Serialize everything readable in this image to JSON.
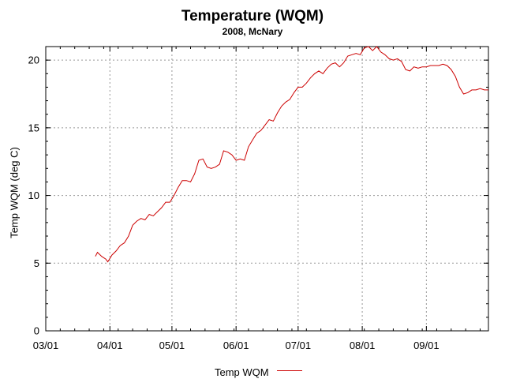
{
  "chart_data": {
    "type": "line",
    "title": "Temperature (WQM)",
    "subtitle": "2008, McNary",
    "ylabel": "Temp WQM (deg C)",
    "xlabel": "",
    "ylim": [
      0,
      21
    ],
    "yticks": [
      0,
      5,
      10,
      15,
      20
    ],
    "xticks": [
      "03/01",
      "04/01",
      "05/01",
      "06/01",
      "07/01",
      "08/01",
      "09/01"
    ],
    "xtick_days": [
      0,
      31,
      61,
      92,
      122,
      153,
      184
    ],
    "xlim_days": [
      0,
      214
    ],
    "grid": true,
    "legend_position": "bottom",
    "series": [
      {
        "name": "Temp WQM",
        "color": "#cc0000",
        "x": [
          24,
          25,
          27,
          29,
          30,
          32,
          34,
          36,
          38,
          40,
          42,
          44,
          46,
          48,
          50,
          52,
          54,
          56,
          58,
          60,
          62,
          64,
          66,
          68,
          70,
          72,
          74,
          76,
          78,
          80,
          82,
          84,
          86,
          88,
          90,
          92,
          94,
          96,
          98,
          100,
          102,
          104,
          106,
          108,
          110,
          112,
          114,
          116,
          118,
          120,
          122,
          124,
          126,
          128,
          130,
          132,
          134,
          136,
          138,
          140,
          142,
          144,
          146,
          148,
          150,
          152,
          154,
          156,
          158,
          160,
          162,
          164,
          166,
          168,
          170,
          172,
          174,
          176,
          178,
          180,
          182,
          184,
          186,
          188,
          190,
          192,
          194,
          196,
          198,
          200,
          202,
          204,
          206,
          208,
          210,
          212,
          214
        ],
        "values": [
          5.5,
          5.8,
          5.5,
          5.3,
          5.1,
          5.6,
          5.9,
          6.3,
          6.5,
          7.0,
          7.8,
          8.1,
          8.3,
          8.2,
          8.6,
          8.5,
          8.8,
          9.1,
          9.5,
          9.5,
          10.0,
          10.6,
          11.1,
          11.1,
          11.0,
          11.6,
          12.6,
          12.7,
          12.1,
          12.0,
          12.1,
          12.3,
          13.3,
          13.2,
          13.0,
          12.6,
          12.7,
          12.6,
          13.6,
          14.1,
          14.6,
          14.8,
          15.2,
          15.6,
          15.5,
          16.1,
          16.6,
          16.9,
          17.1,
          17.6,
          18.0,
          18.0,
          18.3,
          18.7,
          19.0,
          19.2,
          19.0,
          19.4,
          19.7,
          19.8,
          19.5,
          19.8,
          20.3,
          20.4,
          20.5,
          20.4,
          20.9,
          21.0,
          20.7,
          21.0,
          20.6,
          20.4,
          20.1,
          20.0,
          20.1,
          19.9,
          19.3,
          19.2,
          19.5,
          19.4,
          19.5,
          19.5,
          19.6,
          19.6,
          19.6,
          19.7,
          19.6,
          19.3,
          18.8,
          18.0,
          17.5,
          17.6,
          17.8,
          17.8,
          17.9,
          17.8,
          17.8
        ]
      }
    ]
  }
}
